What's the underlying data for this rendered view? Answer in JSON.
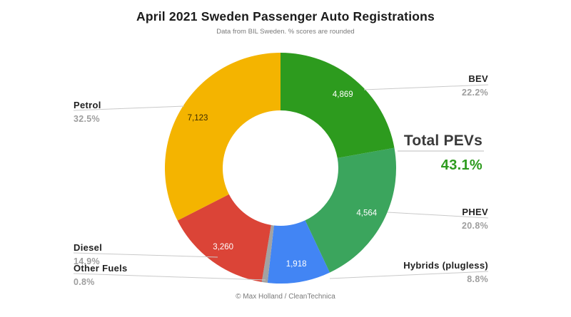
{
  "header": {
    "title": "April 2021 Sweden Passenger Auto Registrations",
    "subtitle": "Data from BIL Sweden. % scores are rounded"
  },
  "footer": {
    "credit": "© Max Holland / CleanTechnica"
  },
  "total_callout": {
    "label": "Total PEVs",
    "value": "43.1%",
    "value_color": "#2d9b1e"
  },
  "ui_colors": {
    "leader_line": "#c9c9c9",
    "label_name": "#212121",
    "label_pct": "#9e9e9e"
  },
  "chart_data": {
    "type": "pie",
    "subtype": "donut",
    "title": "April 2021 Sweden Passenger Auto Registrations",
    "start_angle_deg": 0,
    "direction": "clockwise",
    "inner_radius_ratio": 0.5,
    "slices": [
      {
        "label": "BEV",
        "pct_label": "22.2%",
        "pct": 22.2,
        "count_label": "4,869",
        "color": "#2d9b1e",
        "count_label_color": "#ffffff",
        "label_side": "right"
      },
      {
        "label": "PHEV",
        "pct_label": "20.8%",
        "pct": 20.8,
        "count_label": "4,564",
        "color": "#3ba55d",
        "count_label_color": "#ffffff",
        "label_side": "right"
      },
      {
        "label": "Hybrids (plugless)",
        "pct_label": "8.8%",
        "pct": 8.8,
        "count_label": "1,918",
        "color": "#4285f4",
        "count_label_color": "#ffffff",
        "label_side": "right"
      },
      {
        "label": "Other Fuels",
        "pct_label": "0.8%",
        "pct": 0.8,
        "count_label": "",
        "color": "#a2a2a2",
        "count_label_color": "#ffffff",
        "label_side": "left"
      },
      {
        "label": "Diesel",
        "pct_label": "14.9%",
        "pct": 14.9,
        "count_label": "3,260",
        "color": "#db4437",
        "count_label_color": "#ffffff",
        "label_side": "left"
      },
      {
        "label": "Petrol",
        "pct_label": "32.5%",
        "pct": 32.5,
        "count_label": "7,123",
        "color": "#f4b400",
        "count_label_color": "#3d2c00",
        "label_side": "left"
      }
    ]
  }
}
